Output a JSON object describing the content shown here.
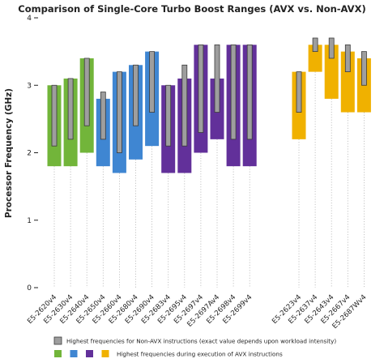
{
  "chart_data": {
    "type": "bar",
    "title": "Comparison of Single-Core Turbo Boost Ranges (AVX vs. Non-AVX)",
    "ylabel": "Processor Frequency (GHz)",
    "xlabel": "",
    "ylim": [
      0,
      4
    ],
    "yticks": [
      0,
      1,
      2,
      3,
      4
    ],
    "grid": false,
    "legend_position": "bottom",
    "colors": {
      "green": "#72b53a",
      "blue": "#3f86d2",
      "purple": "#62309a",
      "orange": "#f0b100",
      "non_avx": "#9e9e9e"
    },
    "series": [
      {
        "name": "Highest frequencies for Non-AVX instructions (exact value depends upon workload intensity)",
        "role": "non_avx"
      },
      {
        "name": "Highest frequencies during execution of AVX instructions",
        "role": "avx"
      }
    ],
    "groups": [
      {
        "processors": [
          {
            "name": "E5-2620v4",
            "color": "green",
            "avx": [
              1.8,
              3.0
            ],
            "non_avx": [
              2.1,
              3.0
            ]
          },
          {
            "name": "E5-2630v4",
            "color": "green",
            "avx": [
              1.8,
              3.1
            ],
            "non_avx": [
              2.2,
              3.1
            ]
          },
          {
            "name": "E5-2640v4",
            "color": "green",
            "avx": [
              2.0,
              3.4
            ],
            "non_avx": [
              2.4,
              3.4
            ]
          },
          {
            "name": "E5-2650v4",
            "color": "blue",
            "avx": [
              1.8,
              2.8
            ],
            "non_avx": [
              2.2,
              2.9
            ]
          },
          {
            "name": "E5-2660v4",
            "color": "blue",
            "avx": [
              1.7,
              3.2
            ],
            "non_avx": [
              2.0,
              3.2
            ]
          },
          {
            "name": "E5-2680v4",
            "color": "blue",
            "avx": [
              1.9,
              3.3
            ],
            "non_avx": [
              2.4,
              3.3
            ]
          },
          {
            "name": "E5-2690v4",
            "color": "blue",
            "avx": [
              2.1,
              3.5
            ],
            "non_avx": [
              2.6,
              3.5
            ]
          },
          {
            "name": "E5-2683v4",
            "color": "purple",
            "avx": [
              1.7,
              3.0
            ],
            "non_avx": [
              2.1,
              3.0
            ]
          },
          {
            "name": "E5-2695v4",
            "color": "purple",
            "avx": [
              1.7,
              3.1
            ],
            "non_avx": [
              2.1,
              3.3
            ]
          },
          {
            "name": "E5-2697v4",
            "color": "purple",
            "avx": [
              2.0,
              3.6
            ],
            "non_avx": [
              2.3,
              3.6
            ]
          },
          {
            "name": "E5-2697Av4",
            "color": "purple",
            "avx": [
              2.2,
              3.1
            ],
            "non_avx": [
              2.6,
              3.6
            ]
          },
          {
            "name": "E5-2698v4",
            "color": "purple",
            "avx": [
              1.8,
              3.6
            ],
            "non_avx": [
              2.2,
              3.6
            ]
          },
          {
            "name": "E5-2699v4",
            "color": "purple",
            "avx": [
              1.8,
              3.6
            ],
            "non_avx": [
              2.2,
              3.6
            ]
          }
        ]
      },
      {
        "processors": [
          {
            "name": "E5-2623v4",
            "color": "orange",
            "avx": [
              2.2,
              3.2
            ],
            "non_avx": [
              2.6,
              3.2
            ]
          },
          {
            "name": "E5-2637v4",
            "color": "orange",
            "avx": [
              3.2,
              3.6
            ],
            "non_avx": [
              3.5,
              3.7
            ]
          },
          {
            "name": "E5-2643v4",
            "color": "orange",
            "avx": [
              2.8,
              3.6
            ],
            "non_avx": [
              3.4,
              3.7
            ]
          },
          {
            "name": "E5-2667v4",
            "color": "orange",
            "avx": [
              2.6,
              3.5
            ],
            "non_avx": [
              3.2,
              3.6
            ]
          },
          {
            "name": "E5-2687Wv4",
            "color": "orange",
            "avx": [
              2.6,
              3.4
            ],
            "non_avx": [
              3.0,
              3.5
            ]
          }
        ]
      }
    ]
  }
}
